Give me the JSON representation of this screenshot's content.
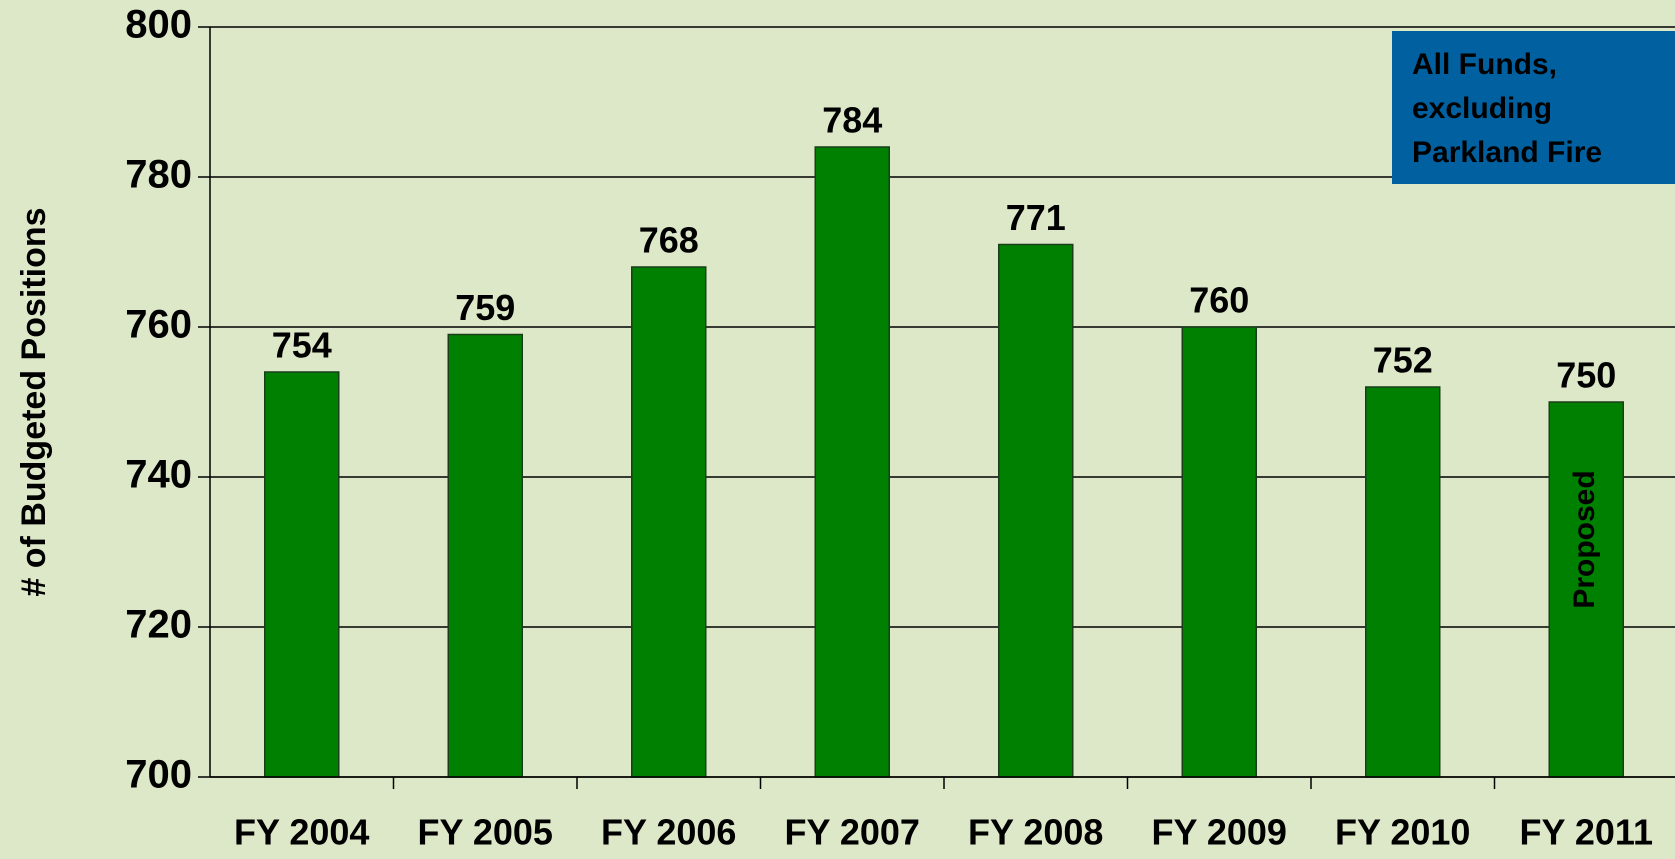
{
  "chart_data": {
    "type": "bar",
    "y_label": "# of Budgeted Positions",
    "categories": [
      "FY 2004",
      "FY 2005",
      "FY 2006",
      "FY 2007",
      "FY 2008",
      "FY 2009",
      "FY 2010",
      "FY 2011"
    ],
    "values": [
      754,
      759,
      768,
      784,
      771,
      760,
      752,
      750
    ],
    "color": "#008000",
    "ylim": [
      700,
      800
    ],
    "yticks": [
      700,
      720,
      740,
      760,
      780,
      800
    ],
    "grid": true,
    "annotation": [
      "All Funds,",
      "excluding",
      "Parkland Fire"
    ],
    "bar_note": "Proposed"
  }
}
